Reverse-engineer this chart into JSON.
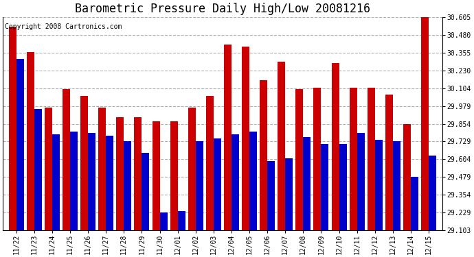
{
  "title": "Barometric Pressure Daily High/Low 20081216",
  "copyright": "Copyright 2008 Cartronics.com",
  "dates": [
    "11/22",
    "11/23",
    "11/24",
    "11/25",
    "11/26",
    "11/27",
    "11/28",
    "11/29",
    "11/30",
    "12/01",
    "12/02",
    "12/03",
    "12/04",
    "12/05",
    "12/06",
    "12/07",
    "12/08",
    "12/09",
    "12/10",
    "12/11",
    "12/12",
    "12/13",
    "12/14",
    "12/15"
  ],
  "highs": [
    30.54,
    30.36,
    29.97,
    30.1,
    30.05,
    29.97,
    29.9,
    29.9,
    29.87,
    29.87,
    29.97,
    30.05,
    30.41,
    30.4,
    30.16,
    30.29,
    30.1,
    30.11,
    30.28,
    30.11,
    30.11,
    30.06,
    29.85,
    30.65
  ],
  "lows": [
    30.31,
    29.96,
    29.78,
    29.8,
    29.79,
    29.77,
    29.73,
    29.65,
    29.23,
    29.24,
    29.73,
    29.75,
    29.78,
    29.8,
    29.59,
    29.61,
    29.76,
    29.71,
    29.71,
    29.79,
    29.74,
    29.73,
    29.48,
    29.63
  ],
  "high_color": "#cc0000",
  "low_color": "#0000cc",
  "bg_color": "#ffffff",
  "grid_color": "#b0b0b0",
  "yticks": [
    29.103,
    29.229,
    29.354,
    29.479,
    29.604,
    29.729,
    29.854,
    29.979,
    30.104,
    30.23,
    30.355,
    30.48,
    30.605
  ],
  "ymin": 29.103,
  "ymax": 30.605,
  "bar_width": 0.42,
  "title_fontsize": 12,
  "copyright_fontsize": 7,
  "tick_fontsize": 7
}
